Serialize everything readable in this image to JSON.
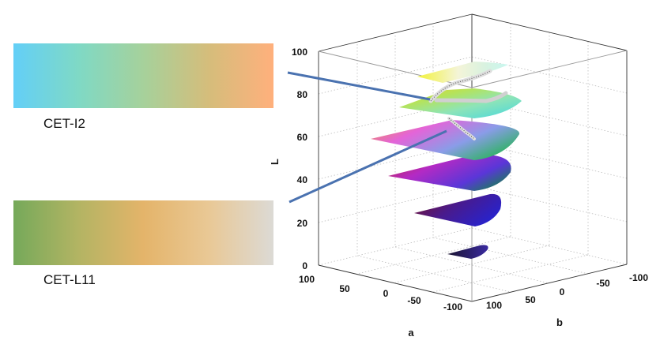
{
  "colormaps": [
    {
      "name": "CET-I2",
      "stops": [
        "#63cff7",
        "#7fd9c5",
        "#a6d19b",
        "#d5bd7b",
        "#ffb07c"
      ]
    },
    {
      "name": "CET-L11",
      "stops": [
        "#75a95a",
        "#b3b463",
        "#e4b46a",
        "#e9c895",
        "#dcdad5"
      ]
    }
  ],
  "axes": {
    "L": {
      "label": "L",
      "ticks": [
        "0",
        "20",
        "40",
        "60",
        "80",
        "100"
      ]
    },
    "a": {
      "label": "a",
      "ticks": [
        "100",
        "50",
        "0",
        "-50",
        "-100"
      ]
    },
    "b": {
      "label": "b",
      "ticks": [
        "100",
        "50",
        "0",
        "-50",
        "-100"
      ]
    }
  },
  "pointer_color": "#4a72b0"
}
